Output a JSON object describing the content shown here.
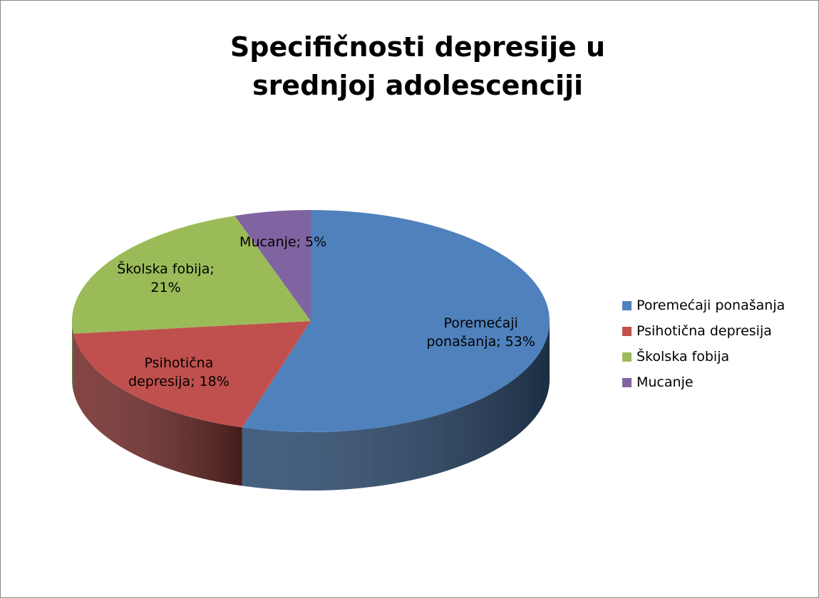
{
  "chart_data": {
    "type": "pie3d",
    "title": "Specifičnosti depresije u srednjoj adolescenciji",
    "categories": [
      "Poremećaji ponašanja",
      "Psihotična depresija",
      "Školska fobija",
      "Mucanje"
    ],
    "values": [
      53,
      18,
      21,
      5
    ],
    "value_labels": [
      "Poremećaji ponašanja; 53%",
      "Psihotična depresija; 18%",
      "Školska fobija; 21%",
      "Mucanje; 5%"
    ],
    "colors": [
      "#4f81bd",
      "#c0504d",
      "#9bbb59",
      "#8064a2"
    ],
    "legend": "right"
  }
}
